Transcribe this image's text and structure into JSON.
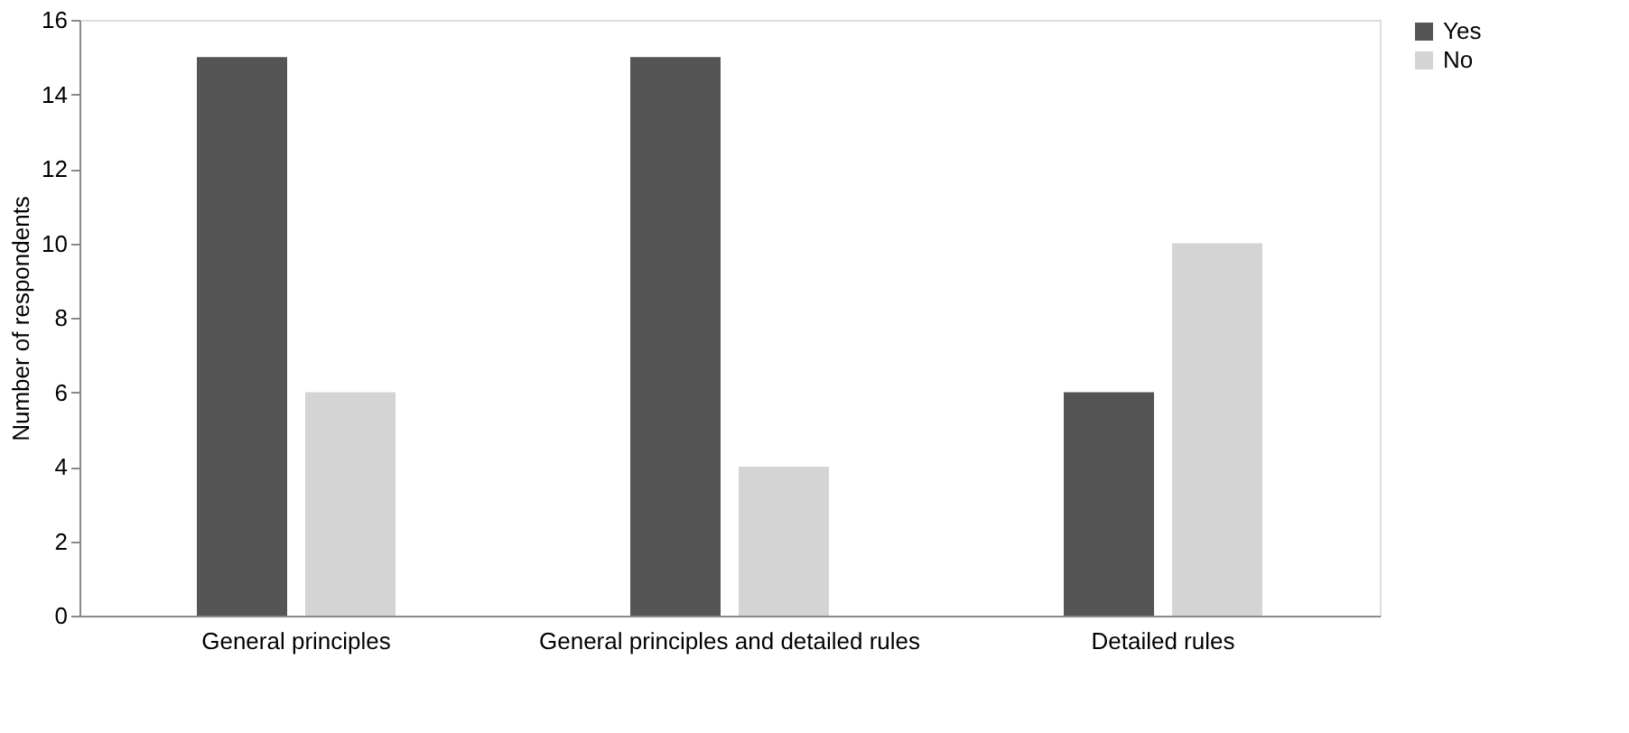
{
  "chart_data": {
    "type": "bar",
    "ylabel": "Number of respondents",
    "categories": [
      "General principles",
      "General principles and detailed rules",
      "Detailed rules"
    ],
    "series": [
      {
        "name": "Yes",
        "color": "#555555",
        "values": [
          15,
          15,
          6
        ]
      },
      {
        "name": "No",
        "color": "#d4d4d4",
        "values": [
          6,
          4,
          10
        ]
      }
    ],
    "ylim": [
      0,
      16
    ],
    "yticks": [
      0,
      2,
      4,
      6,
      8,
      10,
      12,
      14,
      16
    ],
    "grid": false,
    "legend": "right"
  }
}
